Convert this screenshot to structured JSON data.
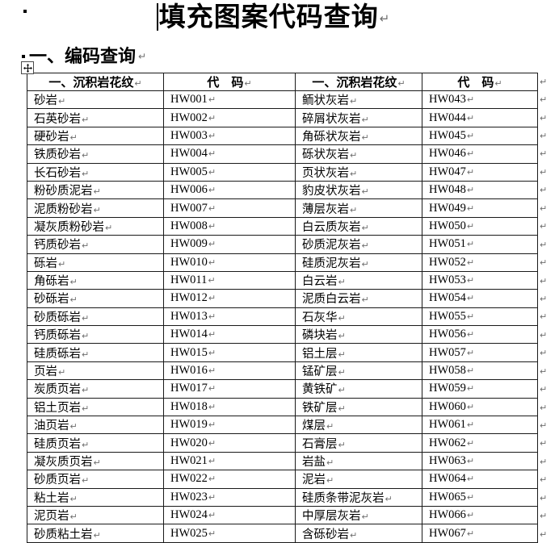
{
  "page": {
    "title": "填充图案代码查询",
    "section_heading": "一、编码查询"
  },
  "marks": {
    "pilcrow": "↵"
  },
  "table": {
    "headers": [
      "一、沉积岩花纹",
      "代　码",
      "一、沉积岩花纹",
      "代　码"
    ],
    "rows": [
      {
        "name1": "砂岩",
        "code1": "HW001",
        "name2": "鲕状灰岩",
        "code2": "HW043"
      },
      {
        "name1": "石英砂岩",
        "code1": "HW002",
        "name2": "碎屑状灰岩",
        "code2": "HW044"
      },
      {
        "name1": "硬砂岩",
        "code1": "HW003",
        "name2": "角砾状灰岩",
        "code2": "HW045"
      },
      {
        "name1": "铁质砂岩",
        "code1": "HW004",
        "name2": "砾状灰岩",
        "code2": "HW046"
      },
      {
        "name1": "长石砂岩",
        "code1": "HW005",
        "name2": "页状灰岩",
        "code2": "HW047"
      },
      {
        "name1": "粉砂质泥岩",
        "code1": "HW006",
        "name2": "豹皮状灰岩",
        "code2": "HW048"
      },
      {
        "name1": "泥质粉砂岩",
        "code1": "HW007",
        "name2": "薄层灰岩",
        "code2": "HW049"
      },
      {
        "name1": "凝灰质粉砂岩",
        "code1": "HW008",
        "name2": "白云质灰岩",
        "code2": "HW050"
      },
      {
        "name1": "钙质砂岩",
        "code1": "HW009",
        "name2": "砂质泥灰岩",
        "code2": "HW051"
      },
      {
        "name1": "砾岩",
        "code1": "HW010",
        "name2": "硅质泥灰岩",
        "code2": "HW052"
      },
      {
        "name1": "角砾岩",
        "code1": "HW011",
        "name2": "白云岩",
        "code2": "HW053"
      },
      {
        "name1": "砂砾岩",
        "code1": "HW012",
        "name2": "泥质白云岩",
        "code2": "HW054"
      },
      {
        "name1": "砂质砾岩",
        "code1": "HW013",
        "name2": "石灰华",
        "code2": "HW055"
      },
      {
        "name1": "钙质砾岩",
        "code1": "HW014",
        "name2": "磷块岩",
        "code2": "HW056"
      },
      {
        "name1": "硅质砾岩",
        "code1": "HW015",
        "name2": "铝土层",
        "code2": "HW057"
      },
      {
        "name1": "页岩",
        "code1": "HW016",
        "name2": "锰矿层",
        "code2": "HW058"
      },
      {
        "name1": "炭质页岩",
        "code1": "HW017",
        "name2": "黄铁矿",
        "code2": "HW059"
      },
      {
        "name1": "铝土页岩",
        "code1": "HW018",
        "name2": "铁矿层",
        "code2": "HW060"
      },
      {
        "name1": "油页岩",
        "code1": "HW019",
        "name2": "煤层",
        "code2": "HW061"
      },
      {
        "name1": "硅质页岩",
        "code1": "HW020",
        "name2": "石膏层",
        "code2": "HW062"
      },
      {
        "name1": "凝灰质页岩",
        "code1": "HW021",
        "name2": "岩盐",
        "code2": "HW063"
      },
      {
        "name1": "砂质页岩",
        "code1": "HW022",
        "name2": "泥岩",
        "code2": "HW064"
      },
      {
        "name1": "粘土岩",
        "code1": "HW023",
        "name2": "硅质条带泥灰岩",
        "code2": "HW065"
      },
      {
        "name1": "泥页岩",
        "code1": "HW024",
        "name2": "中厚层灰岩",
        "code2": "HW066"
      },
      {
        "name1": "砂质粘土岩",
        "code1": "HW025",
        "name2": "含砾砂岩",
        "code2": "HW067"
      }
    ]
  }
}
